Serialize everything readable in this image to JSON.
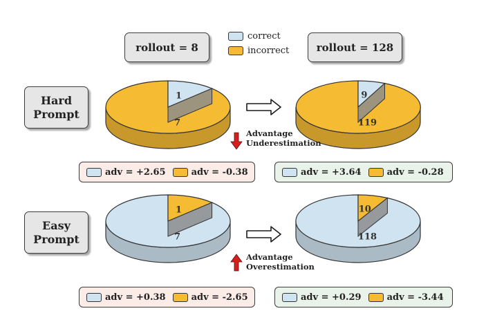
{
  "rollout_left": "rollout = 8",
  "rollout_right": "rollout = 128",
  "legend": {
    "correct": "correct",
    "incorrect": "incorrect"
  },
  "colors": {
    "correct": "#cfe4f0",
    "incorrect": "#f4bb33",
    "adv_left_bg": "#fbece7",
    "adv_right_bg": "#eaf3ea",
    "arrow_red": "#d6201f"
  },
  "hard": {
    "label": "Hard\nPrompt",
    "pie_left": {
      "correct": 1,
      "incorrect": 7
    },
    "pie_right": {
      "correct": 9,
      "incorrect": 119
    },
    "annotation": "Advantage\nUnderestimation",
    "adv_left": {
      "correct": "adv = +2.65",
      "incorrect": "adv = -0.38"
    },
    "adv_right": {
      "correct": "adv = +3.64",
      "incorrect": "adv = -0.28"
    }
  },
  "easy": {
    "label": "Easy\nPrompt",
    "pie_left": {
      "incorrect": 1,
      "correct": 7
    },
    "pie_right": {
      "incorrect": 10,
      "correct": 118
    },
    "annotation": "Advantage\nOverestimation",
    "adv_left": {
      "correct": "adv = +0.38",
      "incorrect": "adv = -2.65"
    },
    "adv_right": {
      "correct": "adv = +0.29",
      "incorrect": "adv = -3.44"
    }
  }
}
